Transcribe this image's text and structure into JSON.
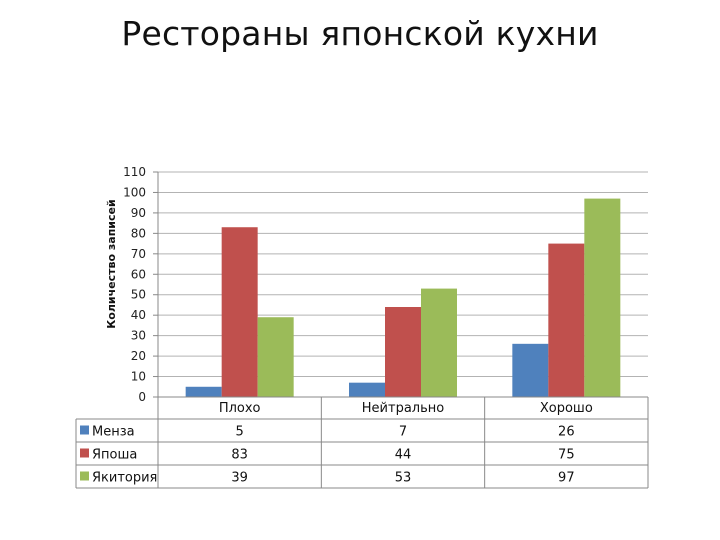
{
  "chart_data": {
    "type": "bar",
    "title": "Рестораны японской кухни",
    "ylabel": "Количество записей",
    "xlabel": "",
    "categories": [
      "Плохо",
      "Нейтрально",
      "Хорошо"
    ],
    "ylim": [
      0,
      110
    ],
    "yticks": [
      0,
      10,
      20,
      30,
      40,
      50,
      60,
      70,
      80,
      90,
      100,
      110
    ],
    "grid": true,
    "legend": "data-table-left",
    "series": [
      {
        "name": "Менза",
        "color": "#4f81bd",
        "values": [
          5,
          7,
          26
        ]
      },
      {
        "name": "Япоша",
        "color": "#c0504d",
        "values": [
          83,
          44,
          75
        ]
      },
      {
        "name": "Якитория",
        "color": "#9bbb59",
        "values": [
          39,
          53,
          97
        ]
      }
    ]
  }
}
